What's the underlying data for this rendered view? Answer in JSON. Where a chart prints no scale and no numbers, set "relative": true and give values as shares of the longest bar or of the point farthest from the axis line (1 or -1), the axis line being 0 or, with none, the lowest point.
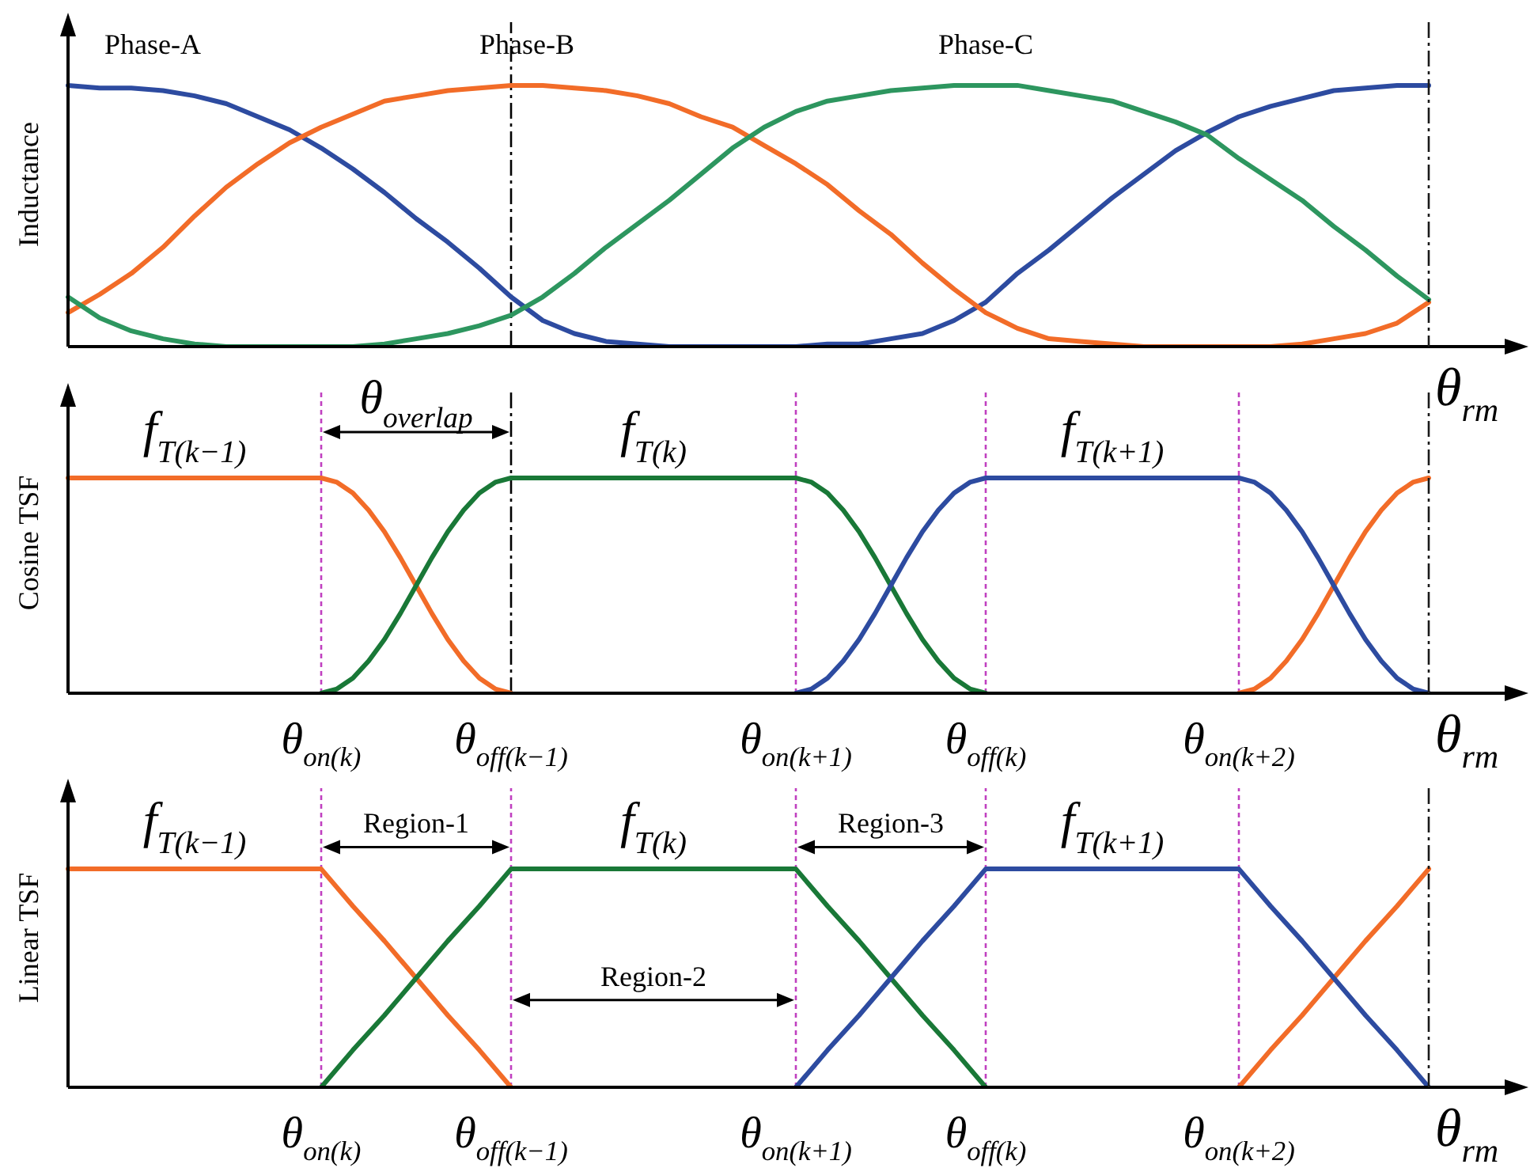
{
  "chart_data": [
    {
      "type": "line",
      "ylabel": "Inductance",
      "xlabel": "θ$_{rm}$",
      "relative": true,
      "tick_labels": false,
      "categories": [
        null,
        null,
        null,
        null,
        null,
        null,
        null,
        null,
        "θ$_{on(k)}$",
        null,
        null,
        null,
        null,
        null,
        "θ$_{off(k−1)}$",
        null,
        null,
        null,
        null,
        null,
        null,
        null,
        null,
        "θ$_{on(k+1)}$",
        null,
        null,
        null,
        null,
        null,
        "θ$_{off(k)}$",
        null,
        null,
        null,
        null,
        null,
        null,
        null,
        "θ$_{on(k+2)}$",
        null,
        null,
        null,
        null,
        null,
        null,
        null,
        null,
        null
      ],
      "series": [
        {
          "name": "Phase-A",
          "color": "#2d4ba0",
          "values": [
            1,
            0.99,
            0.99,
            0.98,
            0.96,
            0.93,
            0.88,
            0.83,
            0.76,
            0.68,
            0.59,
            0.49,
            0.4,
            0.3,
            0.19,
            0.1,
            0.05,
            0.02,
            0.01,
            0,
            0,
            0,
            0,
            0,
            0.01,
            0.01,
            0.03,
            0.05,
            0.1,
            0.17,
            0.28,
            0.37,
            0.47,
            0.57,
            0.66,
            0.75,
            0.82,
            0.88,
            0.92,
            0.95,
            0.98,
            0.99,
            1,
            1,
            null,
            null,
            null
          ]
        },
        {
          "name": "Phase-B",
          "color": "#f26c28",
          "values": [
            0.13,
            0.2,
            0.28,
            0.38,
            0.5,
            0.61,
            0.7,
            0.78,
            0.84,
            0.89,
            0.94,
            0.96,
            0.98,
            0.99,
            1,
            1,
            0.99,
            0.98,
            0.96,
            0.93,
            0.88,
            0.84,
            0.77,
            0.7,
            0.62,
            0.52,
            0.43,
            0.32,
            0.22,
            0.13,
            0.07,
            0.03,
            0.02,
            0.01,
            0,
            0,
            0,
            0,
            0,
            0.01,
            0.03,
            0.05,
            0.09,
            0.17,
            null,
            null,
            null
          ]
        },
        {
          "name": "Phase-C",
          "color": "#2d965f",
          "values": [
            0.19,
            0.11,
            0.06,
            0.03,
            0.01,
            0,
            0,
            0,
            0,
            0,
            0.01,
            0.03,
            0.05,
            0.08,
            0.12,
            0.19,
            0.28,
            0.38,
            0.47,
            0.56,
            0.66,
            0.76,
            0.84,
            0.9,
            0.94,
            0.96,
            0.98,
            0.99,
            1,
            1,
            1,
            0.98,
            0.96,
            0.94,
            0.9,
            0.86,
            0.81,
            0.72,
            0.64,
            0.56,
            0.46,
            0.37,
            0.27,
            0.18,
            null,
            null,
            null
          ]
        }
      ],
      "ref_lines": [
        {
          "axis": "x",
          "value": "θ$_{off(k−1)}$",
          "color": "#000000",
          "line_style": "dashed"
        }
      ]
    },
    {
      "type": "line",
      "ylabel": "Cosine TSF",
      "xlabel": "θ$_{rm}$",
      "relative": true,
      "tick_labels": "x",
      "categories": [
        null,
        null,
        null,
        null,
        null,
        null,
        null,
        null,
        null,
        null,
        null,
        null,
        null,
        null,
        null,
        null,
        "θ$_{on(k)}$",
        null,
        null,
        null,
        null,
        null,
        null,
        null,
        null,
        null,
        null,
        null,
        "θ$_{off(k−1)}$",
        null,
        null,
        null,
        null,
        null,
        null,
        null,
        null,
        null,
        null,
        null,
        null,
        null,
        null,
        null,
        null,
        null,
        "θ$_{on(k+1)}$",
        null,
        null,
        null,
        null,
        null,
        null,
        null,
        null,
        null,
        null,
        null,
        "θ$_{off(k)}$",
        null,
        null,
        null,
        null,
        null,
        null,
        null,
        null,
        null,
        null,
        null,
        null,
        null,
        null,
        null,
        "θ$_{on(k+2)}$",
        null,
        null,
        null,
        null,
        null,
        null,
        null,
        null,
        null,
        null,
        null,
        null,
        null,
        null,
        null,
        null,
        null,
        null
      ],
      "series": [
        {
          "name": "f$_{T(k−1)}$",
          "color": "#f26c28",
          "values": [
            1,
            1,
            1,
            1,
            1,
            1,
            1,
            1,
            1,
            1,
            1,
            1,
            1,
            1,
            1,
            1,
            1,
            0.98,
            0.93,
            0.85,
            0.75,
            0.63,
            0.5,
            0.37,
            0.25,
            0.15,
            0.07,
            0.02,
            0,
            null,
            null,
            null,
            null,
            null,
            null,
            null,
            null,
            null,
            null,
            null,
            null,
            null,
            null,
            null,
            null,
            null,
            null,
            null,
            null,
            null,
            null,
            null,
            null,
            null,
            null,
            null,
            null,
            null,
            null,
            null,
            null,
            null,
            null,
            null,
            null,
            null,
            null,
            null,
            null,
            null,
            null,
            null,
            null,
            null,
            0,
            0.02,
            0.07,
            0.15,
            0.25,
            0.37,
            0.5,
            0.63,
            0.75,
            0.85,
            0.93,
            0.98,
            1,
            null,
            null,
            null,
            null,
            null,
            null
          ]
        },
        {
          "name": "f$_{T(k)}$",
          "color": "#197837",
          "values": [
            null,
            null,
            null,
            null,
            null,
            null,
            null,
            null,
            null,
            null,
            null,
            null,
            null,
            null,
            null,
            null,
            0,
            0.02,
            0.07,
            0.15,
            0.25,
            0.37,
            0.5,
            0.63,
            0.75,
            0.85,
            0.93,
            0.98,
            1,
            1,
            1,
            1,
            1,
            1,
            1,
            1,
            1,
            1,
            1,
            1,
            1,
            1,
            1,
            1,
            1,
            1,
            1,
            0.98,
            0.93,
            0.85,
            0.75,
            0.63,
            0.5,
            0.37,
            0.25,
            0.15,
            0.07,
            0.02,
            0,
            null,
            null,
            null,
            null,
            null,
            null,
            null,
            null,
            null,
            null,
            null,
            null,
            null,
            null,
            null,
            null,
            null,
            null,
            null,
            null,
            null,
            null,
            null,
            null,
            null,
            null,
            null,
            null,
            null,
            null,
            null,
            null,
            null,
            null
          ]
        },
        {
          "name": "f$_{T(k+1)}$",
          "color": "#2d4ba0",
          "values": [
            null,
            null,
            null,
            null,
            null,
            null,
            null,
            null,
            null,
            null,
            null,
            null,
            null,
            null,
            null,
            null,
            null,
            null,
            null,
            null,
            null,
            null,
            null,
            null,
            null,
            null,
            null,
            null,
            null,
            null,
            null,
            null,
            null,
            null,
            null,
            null,
            null,
            null,
            null,
            null,
            null,
            null,
            null,
            null,
            null,
            null,
            0,
            0.02,
            0.07,
            0.15,
            0.25,
            0.37,
            0.5,
            0.63,
            0.75,
            0.85,
            0.93,
            0.98,
            1,
            1,
            1,
            1,
            1,
            1,
            1,
            1,
            1,
            1,
            1,
            1,
            1,
            1,
            1,
            1,
            1,
            0.98,
            0.93,
            0.85,
            0.75,
            0.63,
            0.5,
            0.37,
            0.25,
            0.15,
            0.07,
            0.02,
            0,
            null,
            null,
            null,
            null,
            null,
            null
          ]
        }
      ],
      "ref_lines": [
        {
          "axis": "x",
          "value": "θ$_{on(k)}$",
          "color": "#c040c0",
          "line_style": "dotted"
        },
        {
          "axis": "x",
          "value": "θ$_{off(k−1)}$",
          "color": "#000000",
          "line_style": "dashed"
        },
        {
          "axis": "x",
          "value": "θ$_{on(k+1)}$",
          "color": "#c040c0",
          "line_style": "dotted"
        },
        {
          "axis": "x",
          "value": "θ$_{off(k)}$",
          "color": "#c040c0",
          "line_style": "dotted"
        },
        {
          "axis": "x",
          "value": "θ$_{on(k+2)}$",
          "color": "#c040c0",
          "line_style": "dotted"
        }
      ],
      "annotations": [
        "θ$_{overlap}$"
      ]
    },
    {
      "type": "line",
      "ylabel": "Linear TSF",
      "xlabel": "θ$_{rm}$",
      "relative": true,
      "tick_labels": "x",
      "categories": [
        null,
        null,
        null,
        null,
        null,
        null,
        null,
        null,
        "θ$_{on(k)}$",
        null,
        null,
        null,
        null,
        null,
        "θ$_{off(k−1)}$",
        null,
        null,
        null,
        null,
        null,
        null,
        null,
        null,
        "θ$_{on(k+1)}$",
        null,
        null,
        null,
        null,
        null,
        "θ$_{off(k)}$",
        null,
        null,
        null,
        null,
        null,
        null,
        null,
        "θ$_{on(k+2)}$",
        null,
        null,
        null,
        null,
        null,
        null,
        null,
        null,
        null
      ],
      "series": [
        {
          "name": "f$_{T(k−1)}$",
          "color": "#f26c28",
          "values": [
            1,
            1,
            1,
            1,
            1,
            1,
            1,
            1,
            1,
            0.83,
            0.67,
            0.5,
            0.33,
            0.17,
            0,
            null,
            null,
            null,
            null,
            null,
            null,
            null,
            null,
            null,
            null,
            null,
            null,
            null,
            null,
            null,
            null,
            null,
            null,
            null,
            null,
            null,
            null,
            0,
            0.17,
            0.33,
            0.5,
            0.67,
            0.83,
            1,
            null,
            null,
            null
          ]
        },
        {
          "name": "f$_{T(k)}$",
          "color": "#197837",
          "values": [
            null,
            null,
            null,
            null,
            null,
            null,
            null,
            null,
            0,
            0.17,
            0.33,
            0.5,
            0.67,
            0.83,
            1,
            1,
            1,
            1,
            1,
            1,
            1,
            1,
            1,
            1,
            0.83,
            0.67,
            0.5,
            0.33,
            0.17,
            0,
            null,
            null,
            null,
            null,
            null,
            null,
            null,
            null,
            null,
            null,
            null,
            null,
            null,
            null,
            null,
            null,
            null
          ]
        },
        {
          "name": "f$_{T(k+1)}$",
          "color": "#2d4ba0",
          "values": [
            null,
            null,
            null,
            null,
            null,
            null,
            null,
            null,
            null,
            null,
            null,
            null,
            null,
            null,
            null,
            null,
            null,
            null,
            null,
            null,
            null,
            null,
            null,
            0,
            0.17,
            0.33,
            0.5,
            0.67,
            0.83,
            1,
            1,
            1,
            1,
            1,
            1,
            1,
            1,
            1,
            0.83,
            0.67,
            0.5,
            0.33,
            0.17,
            0,
            null,
            null,
            null
          ]
        }
      ],
      "ref_lines": [
        {
          "axis": "x",
          "value": "θ$_{on(k)}$",
          "color": "#c040c0",
          "line_style": "dotted"
        },
        {
          "axis": "x",
          "value": "θ$_{off(k−1)}$",
          "color": "#c040c0",
          "line_style": "dotted"
        },
        {
          "axis": "x",
          "value": "θ$_{on(k+1)}$",
          "color": "#c040c0",
          "line_style": "dotted"
        },
        {
          "axis": "x",
          "value": "θ$_{off(k)}$",
          "color": "#c040c0",
          "line_style": "dotted"
        },
        {
          "axis": "x",
          "value": "θ$_{on(k+2)}$",
          "color": "#c040c0",
          "line_style": "dotted"
        }
      ],
      "annotations": [
        {
          "text": "Region-1",
          "x": "θ$_{on(k)}$",
          "y": 1.1
        },
        "Region-2",
        {
          "text": "Region-3",
          "x": "θ$_{on(k+1)}$",
          "y": 1.1
        }
      ]
    }
  ]
}
